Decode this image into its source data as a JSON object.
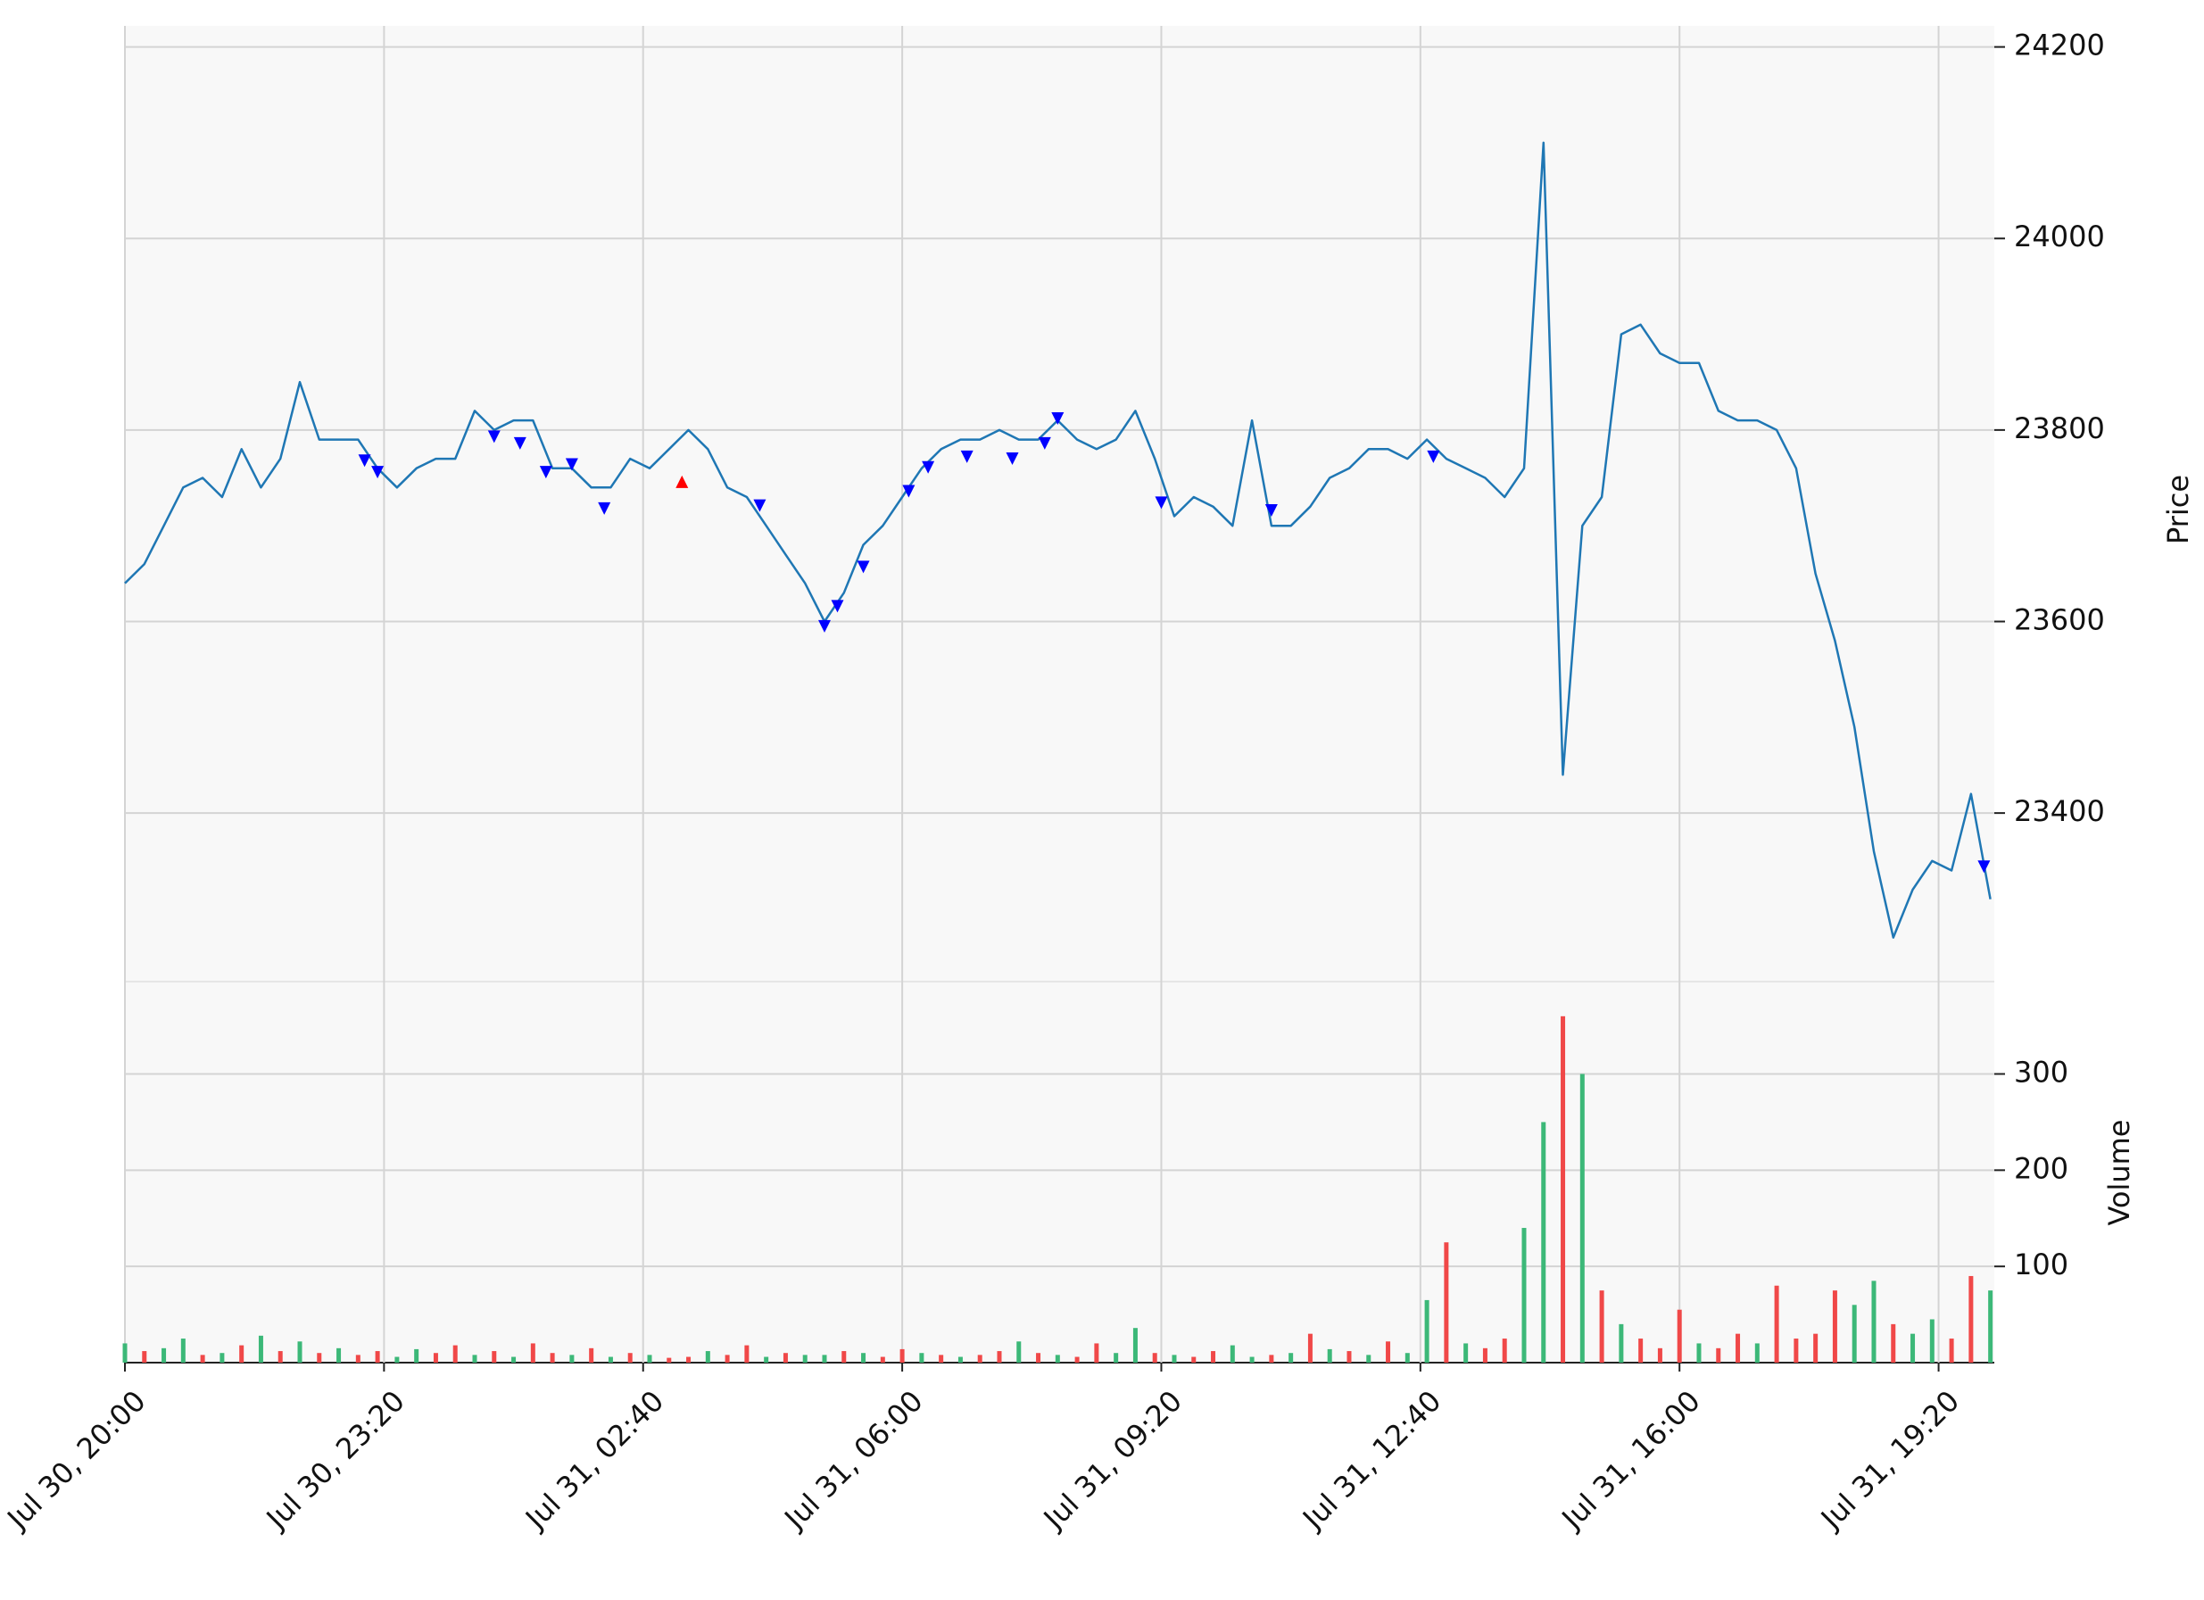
{
  "chart_data": {
    "type": "line",
    "x": [
      "Jul 30, 20:00",
      "Jul 30, 20:15",
      "Jul 30, 20:30",
      "Jul 30, 20:45",
      "Jul 30, 21:00",
      "Jul 30, 21:15",
      "Jul 30, 21:30",
      "Jul 30, 21:45",
      "Jul 30, 22:00",
      "Jul 30, 22:15",
      "Jul 30, 22:30",
      "Jul 30, 22:45",
      "Jul 30, 23:00",
      "Jul 30, 23:15",
      "Jul 30, 23:30",
      "Jul 30, 23:45",
      "Jul 31, 00:00",
      "Jul 31, 00:15",
      "Jul 31, 00:30",
      "Jul 31, 00:45",
      "Jul 31, 01:00",
      "Jul 31, 01:15",
      "Jul 31, 01:30",
      "Jul 31, 01:45",
      "Jul 31, 02:00",
      "Jul 31, 02:15",
      "Jul 31, 02:30",
      "Jul 31, 02:45",
      "Jul 31, 03:00",
      "Jul 31, 03:15",
      "Jul 31, 03:30",
      "Jul 31, 03:45",
      "Jul 31, 04:00",
      "Jul 31, 04:15",
      "Jul 31, 04:30",
      "Jul 31, 04:45",
      "Jul 31, 05:00",
      "Jul 31, 05:15",
      "Jul 31, 05:30",
      "Jul 31, 05:45",
      "Jul 31, 06:00",
      "Jul 31, 06:15",
      "Jul 31, 06:30",
      "Jul 31, 06:45",
      "Jul 31, 07:00",
      "Jul 31, 07:15",
      "Jul 31, 07:30",
      "Jul 31, 07:45",
      "Jul 31, 08:00",
      "Jul 31, 08:15",
      "Jul 31, 08:30",
      "Jul 31, 08:45",
      "Jul 31, 09:00",
      "Jul 31, 09:15",
      "Jul 31, 09:30",
      "Jul 31, 09:45",
      "Jul 31, 10:00",
      "Jul 31, 10:15",
      "Jul 31, 10:30",
      "Jul 31, 10:45",
      "Jul 31, 11:00",
      "Jul 31, 11:15",
      "Jul 31, 11:30",
      "Jul 31, 11:45",
      "Jul 31, 12:00",
      "Jul 31, 12:15",
      "Jul 31, 12:30",
      "Jul 31, 12:45",
      "Jul 31, 13:00",
      "Jul 31, 13:15",
      "Jul 31, 13:30",
      "Jul 31, 13:45",
      "Jul 31, 14:00",
      "Jul 31, 14:15",
      "Jul 31, 14:30",
      "Jul 31, 14:45",
      "Jul 31, 15:00",
      "Jul 31, 15:15",
      "Jul 31, 15:30",
      "Jul 31, 15:45",
      "Jul 31, 16:00",
      "Jul 31, 16:15",
      "Jul 31, 16:30",
      "Jul 31, 16:45",
      "Jul 31, 17:00",
      "Jul 31, 17:15",
      "Jul 31, 17:30",
      "Jul 31, 17:45",
      "Jul 31, 18:00",
      "Jul 31, 18:15",
      "Jul 31, 18:30",
      "Jul 31, 18:45",
      "Jul 31, 19:00",
      "Jul 31, 19:15",
      "Jul 31, 19:30",
      "Jul 31, 19:45",
      "Jul 31, 20:00"
    ],
    "xlim": [
      "Jul 30, 20:00",
      "Jul 31, 20:03"
    ],
    "xticks": [
      "Jul 30, 20:00",
      "Jul 30, 23:20",
      "Jul 31, 02:40",
      "Jul 31, 06:00",
      "Jul 31, 09:20",
      "Jul 31, 12:40",
      "Jul 31, 16:00",
      "Jul 31, 19:20"
    ],
    "ylabel": "Price",
    "ylim": [
      23224,
      24222
    ],
    "yticks": [
      23400,
      23600,
      23800,
      24000,
      24200
    ],
    "grid": true,
    "series": [
      {
        "color": "#1f77b4",
        "values": [
          23640,
          23660,
          23700,
          23740,
          23750,
          23730,
          23780,
          23740,
          23770,
          23850,
          23790,
          23790,
          23790,
          23760,
          23740,
          23760,
          23770,
          23770,
          23820,
          23800,
          23810,
          23810,
          23760,
          23760,
          23740,
          23740,
          23770,
          23760,
          23780,
          23800,
          23780,
          23740,
          23730,
          23700,
          23670,
          23640,
          23600,
          23630,
          23680,
          23700,
          23730,
          23760,
          23780,
          23790,
          23790,
          23800,
          23790,
          23790,
          23810,
          23790,
          23780,
          23790,
          23820,
          23770,
          23710,
          23730,
          23720,
          23700,
          23810,
          23700,
          23700,
          23720,
          23750,
          23760,
          23780,
          23780,
          23770,
          23790,
          23770,
          23760,
          23750,
          23730,
          23760,
          24100,
          23440,
          23700,
          23730,
          23900,
          23910,
          23880,
          23870,
          23870,
          23820,
          23810,
          23810,
          23800,
          23760,
          23650,
          23580,
          23490,
          23360,
          23270,
          23320,
          23350,
          23340,
          23420,
          23310
        ]
      }
    ],
    "markers": [
      {
        "marker": "v",
        "color": "#0000ff",
        "x": [
          "Jul 30, 23:05",
          "Jul 30, 23:15",
          "Jul 31, 00:45",
          "Jul 31, 01:05",
          "Jul 31, 01:25",
          "Jul 31, 01:45",
          "Jul 31, 02:10",
          "Jul 31, 04:10",
          "Jul 31, 05:00",
          "Jul 31, 05:10",
          "Jul 31, 05:30",
          "Jul 31, 06:05",
          "Jul 31, 06:20",
          "Jul 31, 06:50",
          "Jul 31, 07:25",
          "Jul 31, 07:50",
          "Jul 31, 08:00",
          "Jul 31, 09:20",
          "Jul 31, 10:45",
          "Jul 31, 12:50",
          "Jul 31, 19:55"
        ],
        "values": [
          23768,
          23756,
          23793,
          23786,
          23756,
          23764,
          23718,
          23721,
          23595,
          23616,
          23657,
          23736,
          23761,
          23772,
          23770,
          23786,
          23812,
          23724,
          23716,
          23772,
          23344
        ]
      },
      {
        "marker": "^",
        "color": "#ff0000",
        "x": [
          "Jul 31, 03:10"
        ],
        "values": [
          23746
        ]
      }
    ],
    "volume": {
      "type": "bar",
      "ylabel": "Volume",
      "ylim": [
        0,
        396
      ],
      "yticks": [
        100,
        200,
        300
      ],
      "colors": {
        "up": "#3cb878",
        "down": "#f04848"
      },
      "values": [
        20,
        12,
        15,
        25,
        8,
        10,
        18,
        28,
        12,
        22,
        10,
        15,
        8,
        12,
        6,
        14,
        10,
        18,
        8,
        12,
        6,
        20,
        10,
        8,
        15,
        6,
        10,
        8,
        5,
        6,
        12,
        8,
        18,
        6,
        10,
        8,
        8,
        12,
        10,
        6,
        14,
        10,
        8,
        6,
        8,
        12,
        22,
        10,
        8,
        6,
        20,
        10,
        36,
        10,
        8,
        6,
        12,
        18,
        6,
        8,
        10,
        30,
        14,
        12,
        8,
        22,
        10,
        65,
        125,
        20,
        15,
        25,
        140,
        250,
        360,
        300,
        75,
        40,
        25,
        15,
        55,
        20,
        15,
        30,
        20,
        80,
        25,
        30,
        75,
        60,
        85,
        40,
        30,
        45,
        25,
        90,
        75
      ],
      "direction": [
        "up",
        "down",
        "up",
        "up",
        "down",
        "up",
        "down",
        "up",
        "down",
        "up",
        "down",
        "up",
        "down",
        "down",
        "up",
        "up",
        "down",
        "down",
        "up",
        "down",
        "up",
        "down",
        "down",
        "up",
        "down",
        "up",
        "down",
        "up",
        "down",
        "down",
        "up",
        "down",
        "down",
        "up",
        "down",
        "up",
        "up",
        "down",
        "up",
        "down",
        "down",
        "up",
        "down",
        "up",
        "down",
        "down",
        "up",
        "down",
        "up",
        "down",
        "down",
        "up",
        "up",
        "down",
        "up",
        "down",
        "down",
        "up",
        "up",
        "down",
        "up",
        "down",
        "up",
        "down",
        "up",
        "down",
        "up",
        "up",
        "down",
        "up",
        "down",
        "down",
        "up",
        "up",
        "down",
        "up",
        "down",
        "up",
        "down",
        "down",
        "down",
        "up",
        "down",
        "down",
        "up",
        "down",
        "down",
        "down",
        "down",
        "up",
        "up",
        "down",
        "up",
        "up",
        "down",
        "down",
        "up"
      ]
    }
  }
}
